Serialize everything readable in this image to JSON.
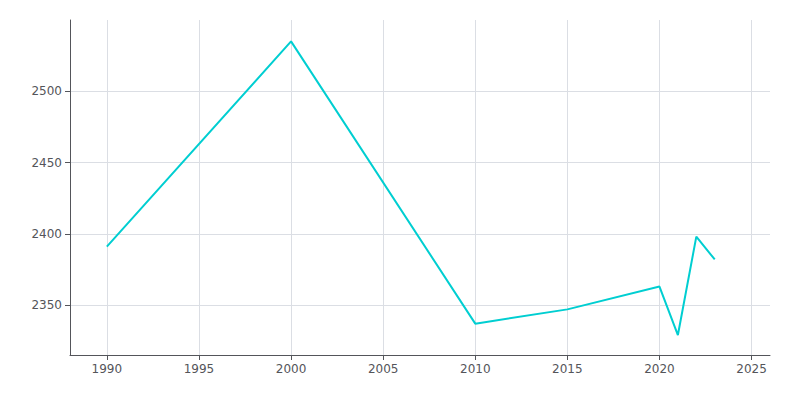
{
  "chart_data": {
    "type": "line",
    "x": [
      1990,
      2000,
      2010,
      2015,
      2020,
      2021,
      2022,
      2023
    ],
    "values": [
      2391,
      2535,
      2337,
      2347,
      2363,
      2329,
      2398,
      2382
    ],
    "color": "#00CED1",
    "xlim": [
      1988,
      2026
    ],
    "ylim": [
      2315,
      2550
    ],
    "xticks": [
      1990,
      1995,
      2000,
      2005,
      2010,
      2015,
      2020,
      2025
    ],
    "yticks": [
      2350,
      2400,
      2450,
      2500
    ],
    "grid": true
  }
}
